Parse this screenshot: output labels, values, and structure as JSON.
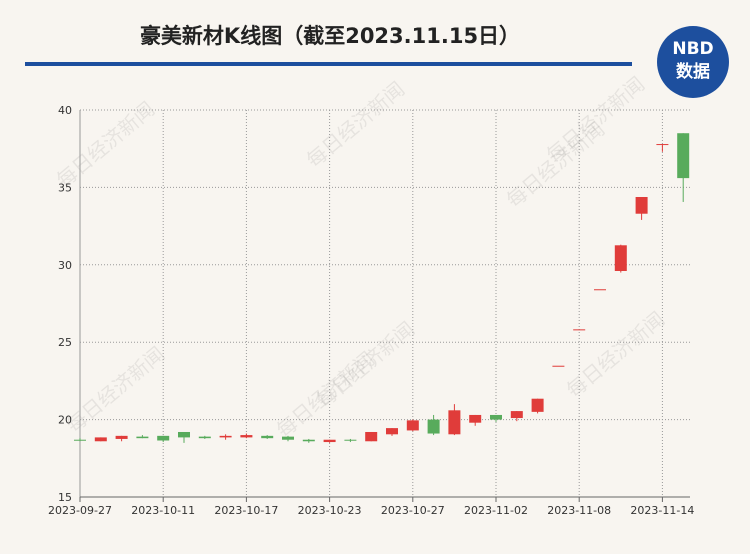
{
  "chart_data": {
    "type": "candlestick",
    "title": "豪美新材K线图（截至2023.11.15日）",
    "logo": {
      "top": "NBD",
      "bottom": "数据"
    },
    "watermark": "每日经济新闻",
    "categories": [
      "2023-09-27",
      null,
      null,
      null,
      "2023-10-11",
      null,
      null,
      null,
      "2023-10-17",
      null,
      null,
      null,
      "2023-10-23",
      null,
      null,
      null,
      "2023-10-27",
      null,
      null,
      null,
      "2023-11-02",
      null,
      null,
      null,
      "2023-11-08",
      null,
      null,
      null,
      "2023-11-14",
      null
    ],
    "open": [
      18.7,
      18.6,
      18.75,
      18.9,
      18.95,
      19.2,
      18.9,
      18.85,
      18.85,
      18.95,
      18.9,
      18.7,
      18.55,
      18.7,
      18.6,
      19.05,
      19.3,
      20.0,
      19.05,
      19.8,
      20.3,
      20.1,
      20.5,
      23.48,
      25.83,
      28.42,
      29.6,
      33.3,
      37.8,
      38.5
    ],
    "high": [
      18.8,
      18.85,
      18.95,
      19.0,
      18.95,
      19.2,
      18.95,
      19.05,
      19.1,
      19.0,
      18.95,
      18.75,
      18.7,
      18.75,
      19.2,
      19.45,
      20.0,
      20.3,
      21.0,
      20.3,
      20.3,
      20.55,
      21.35,
      23.48,
      25.83,
      28.42,
      31.3,
      34.38,
      37.8,
      38.5
    ],
    "low": [
      18.6,
      18.6,
      18.6,
      18.8,
      18.55,
      18.5,
      18.75,
      18.7,
      18.8,
      18.75,
      18.6,
      18.5,
      18.5,
      18.55,
      18.6,
      18.95,
      19.25,
      19.0,
      19.0,
      19.6,
      19.85,
      19.9,
      20.4,
      23.48,
      25.83,
      28.42,
      29.5,
      32.9,
      37.3,
      34.06
    ],
    "close": [
      18.65,
      18.85,
      18.95,
      18.8,
      18.65,
      18.85,
      18.8,
      18.95,
      19.0,
      18.8,
      18.7,
      18.6,
      18.7,
      18.65,
      19.2,
      19.45,
      19.95,
      19.1,
      20.6,
      20.3,
      20.0,
      20.55,
      21.35,
      23.48,
      25.83,
      28.42,
      31.26,
      34.38,
      37.8,
      35.6
    ],
    "up_color": "#e03c3a",
    "down_color": "#58ab5c",
    "ylim": [
      15,
      40
    ],
    "yticks": [
      15,
      20,
      25,
      30,
      35,
      40
    ],
    "grid": true
  }
}
